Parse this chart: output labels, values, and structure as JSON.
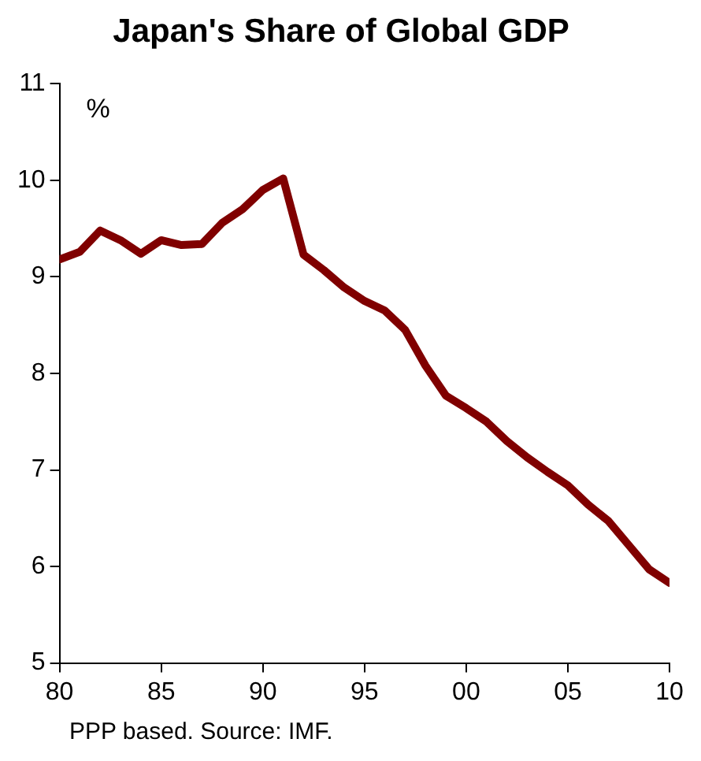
{
  "chart_data": {
    "type": "line",
    "title": "Japan's Share of Global GDP",
    "ylabel": "%",
    "x": [
      1980,
      1981,
      1982,
      1983,
      1984,
      1985,
      1986,
      1987,
      1988,
      1989,
      1990,
      1991,
      1992,
      1993,
      1994,
      1995,
      1996,
      1997,
      1998,
      1999,
      2000,
      2001,
      2002,
      2003,
      2004,
      2005,
      2006,
      2007,
      2008,
      2009,
      2010
    ],
    "series": [
      {
        "color": "#800000",
        "values": [
          9.18,
          9.26,
          9.48,
          9.38,
          9.24,
          9.38,
          9.33,
          9.34,
          9.56,
          9.7,
          9.9,
          10.02,
          9.23,
          9.07,
          8.89,
          8.75,
          8.65,
          8.45,
          8.08,
          7.77,
          7.64,
          7.5,
          7.3,
          7.13,
          6.98,
          6.84,
          6.64,
          6.47,
          6.22,
          5.97,
          5.83
        ]
      }
    ],
    "xlim": [
      1980,
      2010
    ],
    "xticks": [
      {
        "value": 1980,
        "label": "80"
      },
      {
        "value": 1985,
        "label": "85"
      },
      {
        "value": 1990,
        "label": "90"
      },
      {
        "value": 1995,
        "label": "95"
      },
      {
        "value": 2000,
        "label": "00"
      },
      {
        "value": 2005,
        "label": "05"
      },
      {
        "value": 2010,
        "label": "10"
      }
    ],
    "ylim": [
      5,
      11
    ],
    "yticks": [
      5,
      6,
      7,
      8,
      9,
      10,
      11
    ],
    "grid": false,
    "legend": false,
    "marker": "none",
    "line_style": "solid",
    "annotations": [
      "PPP based.  Source: IMF."
    ]
  }
}
